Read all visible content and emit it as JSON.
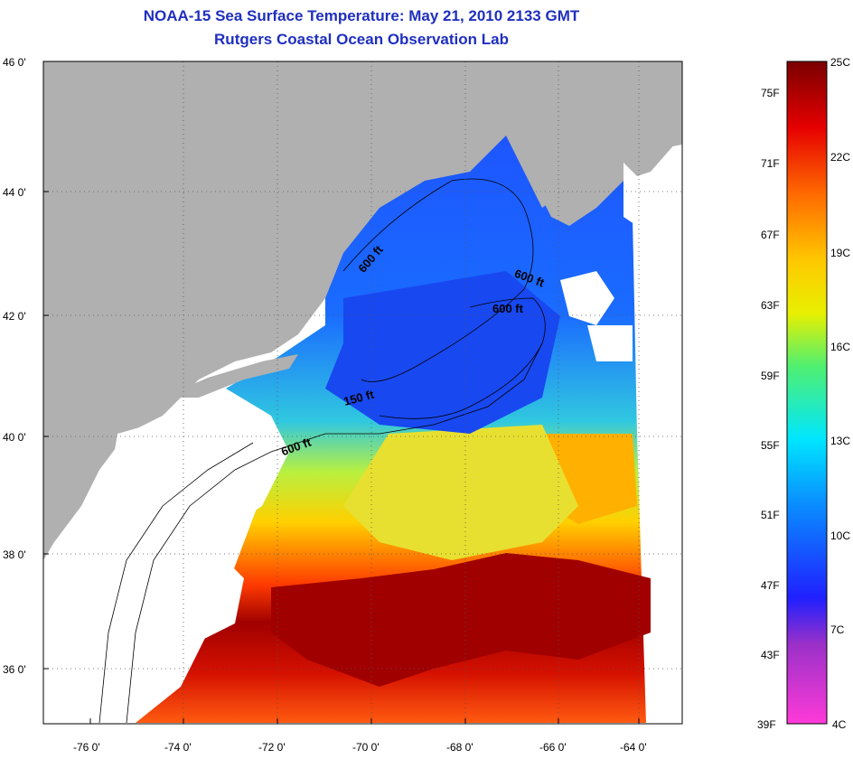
{
  "title_line1": "NOAA-15 Sea Surface Temperature:  May 21, 2010 2133 GMT",
  "title_line2": "Rutgers Coastal Ocean Observation Lab",
  "map": {
    "lat_labels": [
      "46 0'",
      "44 0'",
      "42 0'",
      "40 0'",
      "38 0'",
      "36 0'"
    ],
    "lon_labels": [
      "-76 0'",
      "-74 0'",
      "-72 0'",
      "-70 0'",
      "-68 0'",
      "-66 0'",
      "-64 0'"
    ],
    "contour_labels": [
      "600 ft",
      "600 ft",
      "600 ft",
      "150 ft",
      "600 ft"
    ]
  },
  "colorbar": {
    "fahrenheit_labels": [
      "75F",
      "71F",
      "67F",
      "63F",
      "59F",
      "55F",
      "51F",
      "47F",
      "43F",
      "39F"
    ],
    "celsius_labels": [
      "25C",
      "22C",
      "19C",
      "16C",
      "13C",
      "10C",
      "7C",
      "4C"
    ]
  },
  "colors": {
    "land": "#b0b0b0",
    "title": "#1f2fbf",
    "cloud": "#ffffff"
  }
}
